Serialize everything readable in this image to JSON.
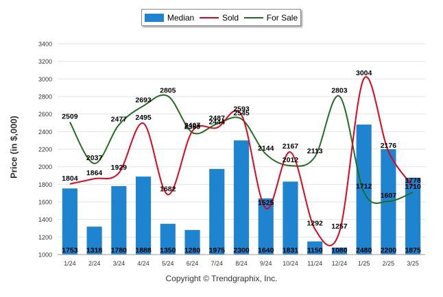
{
  "legend": {
    "median": "Median",
    "sold": "Sold",
    "for_sale": "For Sale"
  },
  "copyright": "Copyright © Trendgraphix, Inc.",
  "colors": {
    "median": "#1f84d0",
    "sold": "#e3001b",
    "for_sale": "#1e6e1e",
    "grid": "#e2e2e2"
  },
  "chart_data": {
    "type": "bar",
    "ylabel": "Price (in $,000)",
    "xlabel": "",
    "ylim": [
      1000,
      3400
    ],
    "yticks": [
      1000,
      1200,
      1400,
      1600,
      1800,
      2000,
      2200,
      2400,
      2600,
      2800,
      3000,
      3200,
      3400
    ],
    "grid": true,
    "legend_position": "top-center",
    "categories": [
      "1/24",
      "2/24",
      "3/24",
      "4/24",
      "5/24",
      "6/24",
      "7/24",
      "8/24",
      "9/24",
      "10/24",
      "11/24",
      "12/24",
      "1/25",
      "2/25",
      "3/25"
    ],
    "series": [
      {
        "name": "Median",
        "type": "bar",
        "values": [
          1753,
          1318,
          1780,
          1888,
          1350,
          1280,
          1975,
          2300,
          1640,
          1831,
          1150,
          1080,
          2480,
          2200,
          1875
        ]
      },
      {
        "name": "Sold",
        "type": "line",
        "values": [
          1804,
          1864,
          1929,
          2495,
          1682,
          2407,
          2444,
          2593,
          1525,
          2167,
          1292,
          1257,
          3004,
          2176,
          1778
        ]
      },
      {
        "name": "For Sale",
        "type": "line",
        "values": [
          2509,
          2037,
          2477,
          2693,
          2805,
          2389,
          2487,
          2545,
          2144,
          2012,
          2113,
          2803,
          1712,
          1607,
          1710
        ]
      }
    ]
  }
}
